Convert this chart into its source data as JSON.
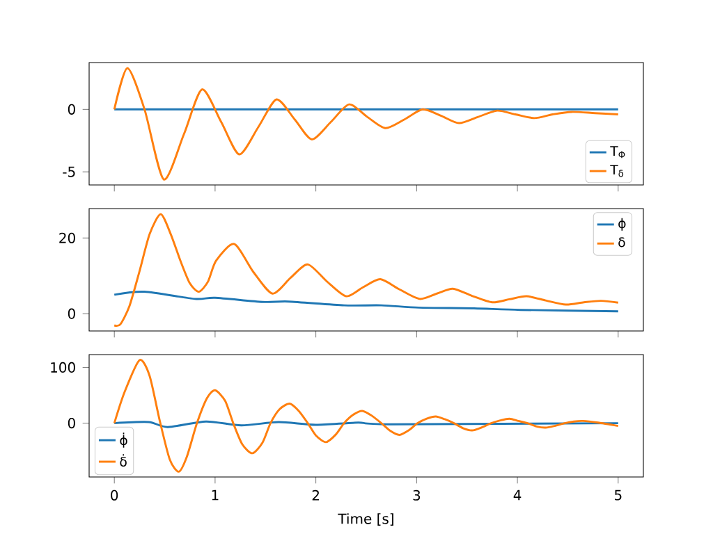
{
  "chart_data": [
    {
      "type": "line",
      "xlim": [
        -0.25,
        5.25
      ],
      "xticks": [
        0,
        1,
        2,
        3,
        4,
        5
      ],
      "ylim": [
        -6.05,
        3.75
      ],
      "yticks": [
        -5,
        0
      ],
      "tick_labels": "y",
      "legend": "lower right",
      "series": [
        {
          "name": "T$_{Φ}$",
          "color": "#1f77b4",
          "x": [
            0,
            5
          ],
          "values": [
            0,
            0
          ]
        },
        {
          "name": "T$_{δ}$",
          "color": "#ff7f0e",
          "x": [
            0,
            0.13,
            0.3,
            0.49,
            0.69,
            0.87,
            1.06,
            1.24,
            1.43,
            1.61,
            1.79,
            1.96,
            2.15,
            2.33,
            2.51,
            2.69,
            2.88,
            3.06,
            3.24,
            3.42,
            3.61,
            3.8,
            3.98,
            4.17,
            4.35,
            4.54,
            4.77,
            5
          ],
          "values": [
            0,
            3.3,
            0,
            -5.6,
            -2.0,
            1.6,
            -1.0,
            -3.6,
            -1.4,
            0.8,
            -0.8,
            -2.4,
            -1.0,
            0.4,
            -0.6,
            -1.5,
            -0.8,
            0.0,
            -0.5,
            -1.1,
            -0.6,
            -0.1,
            -0.4,
            -0.7,
            -0.4,
            -0.2,
            -0.3,
            -0.4
          ]
        }
      ]
    },
    {
      "type": "line",
      "xlim": [
        -0.25,
        5.25
      ],
      "xticks": [
        0,
        1,
        2,
        3,
        4,
        5
      ],
      "ylim": [
        -4.57,
        27.77
      ],
      "yticks": [
        0,
        20
      ],
      "tick_labels": "y",
      "legend": "top right",
      "series": [
        {
          "name": "ϕ",
          "color": "#1f77b4",
          "x": [
            0,
            0.3,
            0.8,
            1.0,
            1.47,
            1.73,
            2.28,
            2.65,
            3.02,
            3.57,
            4.03,
            5
          ],
          "values": [
            5.0,
            5.8,
            3.9,
            4.2,
            3.1,
            3.2,
            2.2,
            2.2,
            1.6,
            1.4,
            1.0,
            0.6
          ]
        },
        {
          "name": "δ",
          "color": "#ff7f0e",
          "x": [
            0,
            0.06,
            0.15,
            0.25,
            0.35,
            0.46,
            0.56,
            0.66,
            0.75,
            0.84,
            0.93,
            1.01,
            1.19,
            1.38,
            1.57,
            1.75,
            1.92,
            2.11,
            2.3,
            2.47,
            2.64,
            2.83,
            3.03,
            3.2,
            3.36,
            3.55,
            3.75,
            3.92,
            4.09,
            4.28,
            4.48,
            4.66,
            4.83,
            5
          ],
          "values": [
            -3.1,
            -2.8,
            2,
            11.2,
            21,
            26.3,
            21,
            13.7,
            8,
            5.8,
            8.5,
            14,
            18.4,
            11,
            5.3,
            9.5,
            13,
            8.5,
            4.6,
            7,
            9.1,
            6.4,
            3.9,
            5.3,
            6.6,
            4.7,
            3.0,
            3.8,
            4.6,
            3.5,
            2.4,
            3,
            3.4,
            2.9
          ]
        }
      ]
    },
    {
      "type": "line",
      "xlabel": "Time [s]",
      "xlim": [
        -0.25,
        5.25
      ],
      "xticks": [
        0,
        1,
        2,
        3,
        4,
        5
      ],
      "ylim": [
        -96.5,
        123
      ],
      "yticks": [
        0,
        100
      ],
      "legend": "bottom left",
      "series": [
        {
          "name": "ϕ̇",
          "color": "#1f77b4",
          "x": [
            0,
            0.34,
            0.53,
            0.91,
            1.26,
            1.63,
            2.0,
            2.42,
            2.74,
            5
          ],
          "values": [
            0,
            2,
            -7,
            3,
            -4,
            2,
            -3,
            1,
            -2,
            0
          ]
        },
        {
          "name": "δ̇",
          "color": "#ff7f0e",
          "x": [
            0,
            0.1,
            0.25,
            0.35,
            0.45,
            0.55,
            0.64,
            0.72,
            0.82,
            0.92,
            1.0,
            1.1,
            1.18,
            1.27,
            1.37,
            1.47,
            1.55,
            1.64,
            1.74,
            1.83,
            1.92,
            2.0,
            2.1,
            2.2,
            2.28,
            2.37,
            2.46,
            2.55,
            2.65,
            2.74,
            2.83,
            2.92,
            3.01,
            3.1,
            3.19,
            3.28,
            3.37,
            3.46,
            3.55,
            3.64,
            3.74,
            3.83,
            3.92,
            4.01,
            4.1,
            4.19,
            4.28,
            4.37,
            4.47,
            4.56,
            4.65,
            4.8,
            5
          ],
          "values": [
            0,
            55,
            113,
            85,
            5,
            -65,
            -87,
            -60,
            0,
            45,
            59,
            40,
            0,
            -38,
            -54,
            -35,
            0,
            25,
            35,
            22,
            0,
            -22,
            -34,
            -20,
            0,
            15,
            22,
            14,
            0,
            -14,
            -21,
            -13,
            0,
            8,
            12,
            7,
            0,
            -9,
            -13,
            -8,
            0,
            5,
            8,
            4,
            0,
            -6,
            -8,
            -5,
            0,
            3,
            4,
            1,
            -5
          ]
        }
      ]
    }
  ]
}
